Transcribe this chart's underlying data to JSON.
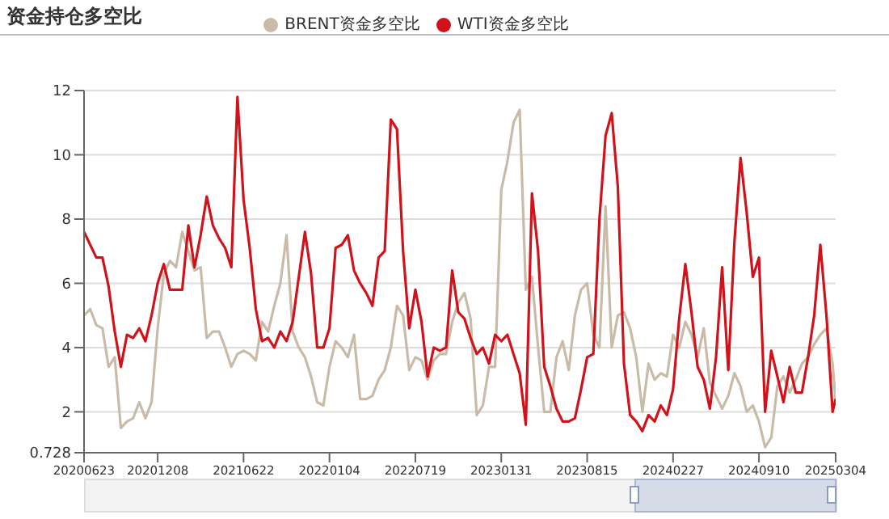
{
  "chart_data": {
    "type": "line",
    "title": "资金持仓多空比",
    "x": [
      "2020-06-23",
      "2020-07-07",
      "2020-07-21",
      "2020-08-04",
      "2020-08-18",
      "2020-09-01",
      "2020-09-15",
      "2020-09-29",
      "2020-10-13",
      "2020-10-27",
      "2020-11-10",
      "2020-11-24",
      "2020-12-08",
      "2020-12-22",
      "2021-01-05",
      "2021-01-19",
      "2021-02-02",
      "2021-02-16",
      "2021-03-02",
      "2021-03-16",
      "2021-03-30",
      "2021-04-13",
      "2021-04-27",
      "2021-05-11",
      "2021-05-25",
      "2021-06-08",
      "2021-06-22",
      "2021-07-06",
      "2021-07-20",
      "2021-08-03",
      "2021-08-17",
      "2021-08-31",
      "2021-09-14",
      "2021-09-28",
      "2021-10-12",
      "2021-10-26",
      "2021-11-09",
      "2021-11-23",
      "2021-12-07",
      "2021-12-21",
      "2022-01-04",
      "2022-01-18",
      "2022-02-01",
      "2022-02-15",
      "2022-03-01",
      "2022-03-15",
      "2022-03-29",
      "2022-04-12",
      "2022-04-26",
      "2022-05-10",
      "2022-05-24",
      "2022-06-07",
      "2022-06-21",
      "2022-07-05",
      "2022-07-19",
      "2022-08-02",
      "2022-08-16",
      "2022-08-30",
      "2022-09-13",
      "2022-09-27",
      "2022-10-11",
      "2022-10-25",
      "2022-11-08",
      "2022-11-22",
      "2022-12-06",
      "2022-12-20",
      "2023-01-03",
      "2023-01-17",
      "2023-01-31",
      "2023-02-14",
      "2023-02-28",
      "2023-03-14",
      "2023-03-28",
      "2023-04-11",
      "2023-04-25",
      "2023-05-09",
      "2023-05-23",
      "2023-06-06",
      "2023-06-20",
      "2023-07-04",
      "2023-07-18",
      "2023-08-01",
      "2023-08-15",
      "2023-08-29",
      "2023-09-12",
      "2023-09-26",
      "2023-10-10",
      "2023-10-24",
      "2023-11-07",
      "2023-11-21",
      "2023-12-05",
      "2023-12-19",
      "2024-01-02",
      "2024-01-16",
      "2024-01-30",
      "2024-02-13",
      "2024-02-27",
      "2024-03-12",
      "2024-03-26",
      "2024-04-09",
      "2024-04-23",
      "2024-05-07",
      "2024-05-21",
      "2024-06-04",
      "2024-06-18",
      "2024-07-02",
      "2024-07-16",
      "2024-07-30",
      "2024-08-13",
      "2024-08-27",
      "2024-09-10",
      "2024-09-24",
      "2024-10-08",
      "2024-10-22",
      "2024-11-05",
      "2024-11-19",
      "2024-12-03",
      "2024-12-17",
      "2024-12-31",
      "2025-01-14",
      "2025-01-28",
      "2025-02-11",
      "2025-02-25",
      "2025-03-04"
    ],
    "series": [
      {
        "name": "BRENT资金多空比",
        "color": "#c9bba8",
        "values": [
          5.0,
          5.2,
          4.7,
          4.6,
          3.4,
          3.7,
          1.5,
          1.7,
          1.8,
          2.3,
          1.8,
          2.3,
          4.6,
          6.3,
          6.7,
          6.5,
          7.6,
          7.0,
          6.4,
          6.5,
          4.3,
          4.5,
          4.5,
          4.0,
          3.4,
          3.8,
          3.9,
          3.8,
          3.6,
          4.8,
          4.5,
          5.3,
          6.0,
          7.5,
          4.5,
          4.0,
          3.7,
          3.1,
          2.3,
          2.2,
          3.4,
          4.2,
          4.0,
          3.7,
          4.4,
          2.4,
          2.4,
          2.5,
          3.0,
          3.3,
          4.0,
          5.3,
          5.0,
          3.3,
          3.7,
          3.6,
          3.0,
          3.6,
          3.8,
          3.8,
          4.8,
          5.4,
          5.7,
          4.9,
          1.9,
          2.2,
          3.4,
          3.4,
          8.9,
          9.8,
          11.0,
          11.4,
          5.8,
          6.2,
          4.0,
          2.0,
          2.0,
          3.7,
          4.2,
          3.3,
          5.0,
          5.8,
          6.0,
          4.4,
          4.0,
          8.4,
          4.0,
          5.0,
          5.1,
          4.6,
          3.7,
          2.0,
          3.5,
          3.0,
          3.2,
          3.1,
          4.4,
          4.0,
          4.8,
          4.4,
          3.7,
          4.6,
          2.9,
          2.5,
          2.1,
          2.5,
          3.2,
          2.8,
          2.0,
          2.2,
          1.7,
          0.9,
          1.2,
          2.8,
          3.1,
          2.6,
          3.0,
          3.5,
          3.7,
          4.1,
          4.4,
          4.6,
          3.5,
          2.3
        ]
      },
      {
        "name": "WTI资金多空比",
        "color": "#d0121b",
        "values": [
          7.6,
          7.2,
          6.8,
          6.8,
          5.9,
          4.5,
          3.4,
          4.4,
          4.3,
          4.6,
          4.2,
          5.0,
          6.0,
          6.6,
          5.8,
          5.8,
          5.8,
          7.8,
          6.5,
          7.5,
          8.7,
          7.8,
          7.4,
          7.1,
          6.5,
          11.8,
          8.6,
          7.1,
          5.2,
          4.2,
          4.3,
          4.0,
          4.5,
          4.2,
          4.8,
          6.2,
          7.6,
          6.3,
          4.0,
          4.0,
          4.6,
          7.1,
          7.2,
          7.5,
          6.4,
          6.0,
          5.7,
          5.3,
          6.8,
          7.0,
          11.1,
          10.8,
          7.0,
          4.6,
          5.8,
          4.8,
          3.1,
          4.0,
          3.9,
          4.0,
          6.4,
          5.1,
          4.9,
          4.3,
          3.8,
          4.0,
          3.5,
          4.4,
          4.2,
          4.4,
          3.8,
          3.2,
          1.6,
          8.8,
          7.0,
          3.4,
          2.8,
          2.1,
          1.7,
          1.7,
          1.8,
          2.7,
          3.7,
          3.8,
          8.0,
          10.6,
          11.3,
          9.0,
          3.5,
          1.9,
          1.7,
          1.4,
          1.9,
          1.7,
          2.2,
          1.9,
          2.7,
          4.9,
          6.6,
          5.1,
          3.4,
          3.0,
          2.1,
          3.7,
          6.5,
          3.3,
          7.3,
          9.9,
          8.2,
          6.2,
          6.8,
          2.0,
          3.9,
          3.1,
          2.3,
          3.4,
          2.6,
          2.6,
          3.7,
          5.0,
          7.2,
          5.0,
          2.0,
          2.4
        ]
      }
    ],
    "xlim": [
      "2020-06-23",
      "2025-03-04"
    ],
    "xticks": [
      {
        "value": "2020-06-23",
        "label": "20200623"
      },
      {
        "value": "2020-12-08",
        "label": "20201208"
      },
      {
        "value": "2021-06-22",
        "label": "20210622"
      },
      {
        "value": "2022-01-04",
        "label": "20220104"
      },
      {
        "value": "2022-07-19",
        "label": "20220719"
      },
      {
        "value": "2023-01-31",
        "label": "20230131"
      },
      {
        "value": "2023-08-15",
        "label": "20230815"
      },
      {
        "value": "2024-02-27",
        "label": "20240227"
      },
      {
        "value": "2024-09-10",
        "label": "20240910"
      },
      {
        "value": "2025-03-04",
        "label": "20250304"
      }
    ],
    "ylim": [
      0.728,
      12
    ],
    "yticks": [
      0.728,
      2,
      4,
      6,
      8,
      10,
      12
    ],
    "grid": "y",
    "legend": "top",
    "marker": "none",
    "line_style": "solid"
  }
}
